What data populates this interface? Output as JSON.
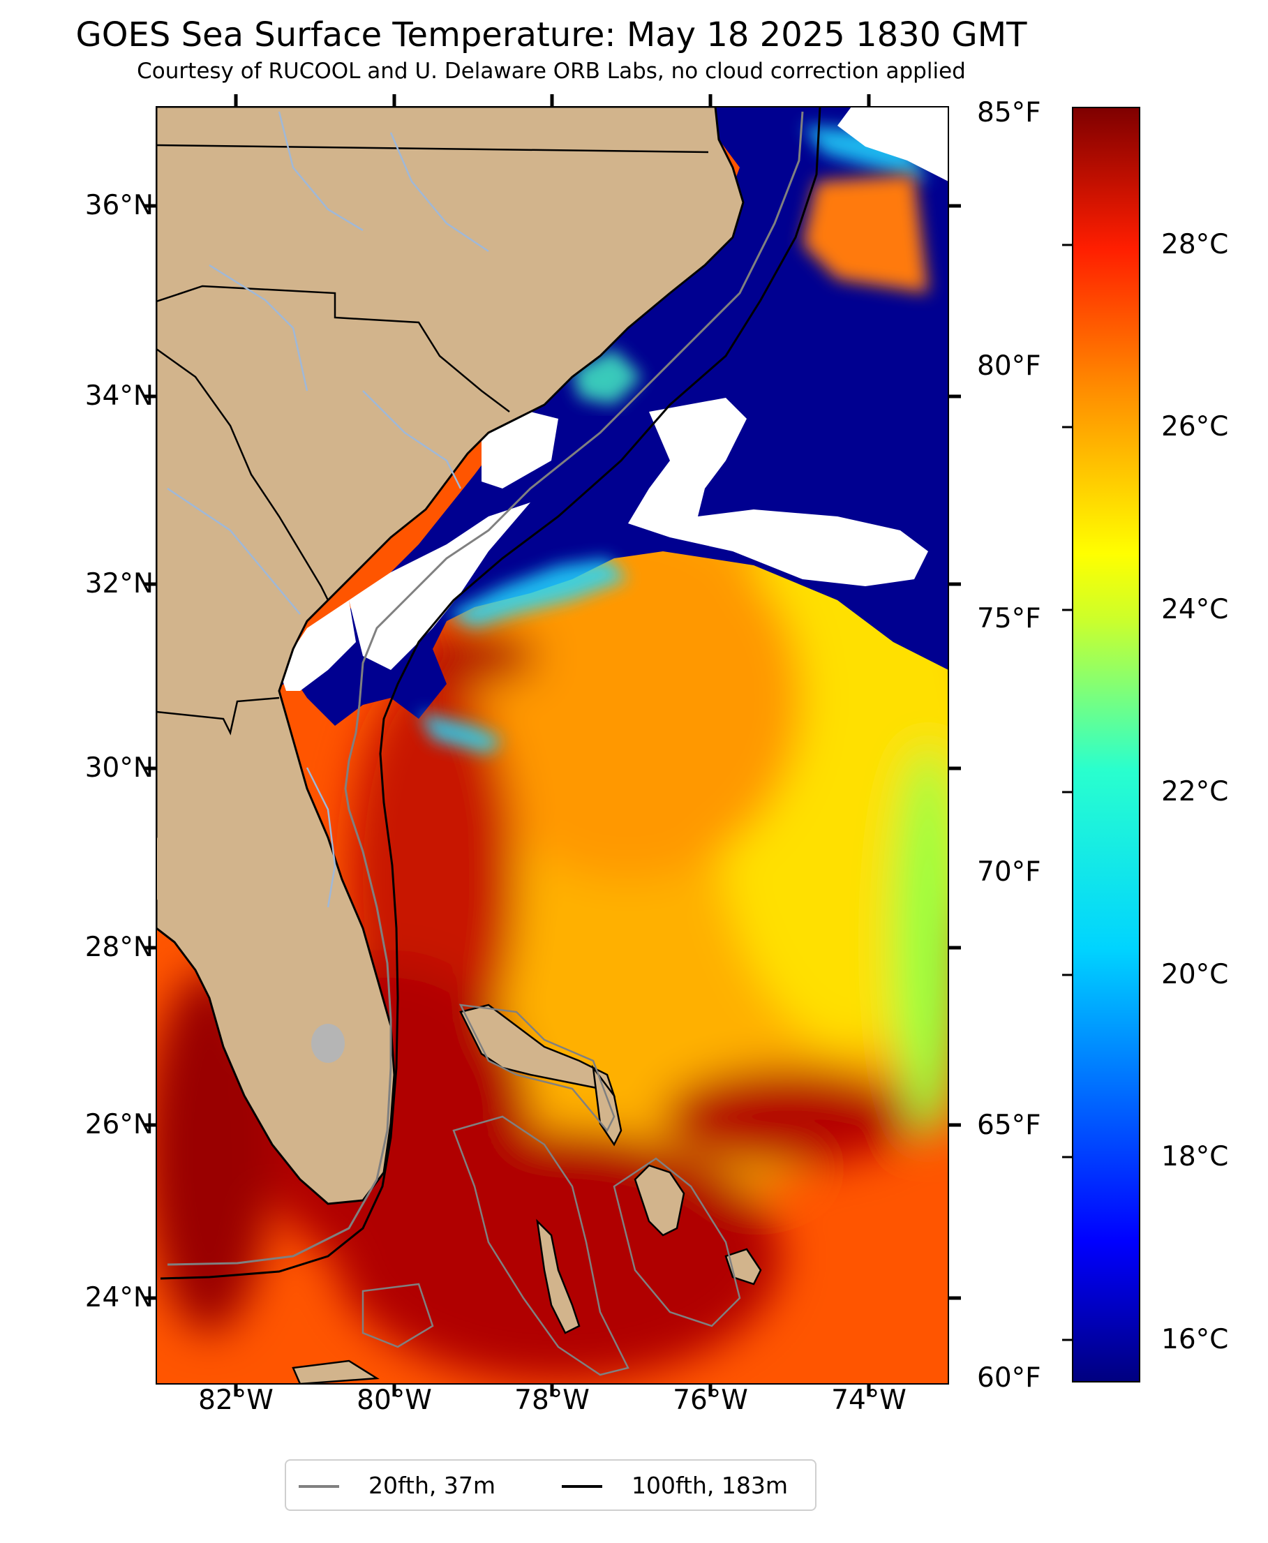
{
  "title": "GOES Sea Surface Temperature: May 18 2025 1830 GMT",
  "subtitle": "Courtesy of RUCOOL and U. Delaware ORB Labs, no cloud correction applied",
  "map": {
    "projection": "plate carree",
    "lon_range": [
      -83.0,
      -73.0
    ],
    "lat_range": [
      23.1,
      37.0
    ],
    "land_color": "#d2b48c",
    "cloud_color": "#ffffff",
    "river_color": "#9fb8d8",
    "lake_color": "#b5b5b5",
    "colormap": "jet",
    "lat_ticks": [
      "24°N",
      "26°N",
      "28°N",
      "30°N",
      "32°N",
      "34°N",
      "36°N"
    ],
    "lon_ticks": [
      "82°W",
      "80°W",
      "78°W",
      "76°W",
      "74°W"
    ]
  },
  "colorbar": {
    "colormap": "jet",
    "f_labels": [
      "85°F",
      "80°F",
      "75°F",
      "70°F",
      "65°F",
      "60°F"
    ],
    "c_labels": [
      "28°C",
      "26°C",
      "24°C",
      "22°C",
      "20°C",
      "18°C",
      "16°C"
    ],
    "range_f": [
      60,
      85
    ]
  },
  "legend": {
    "items": [
      {
        "label": "20fth, 37m",
        "color": "#808080"
      },
      {
        "label": "100fth, 183m",
        "color": "#000000"
      }
    ]
  }
}
